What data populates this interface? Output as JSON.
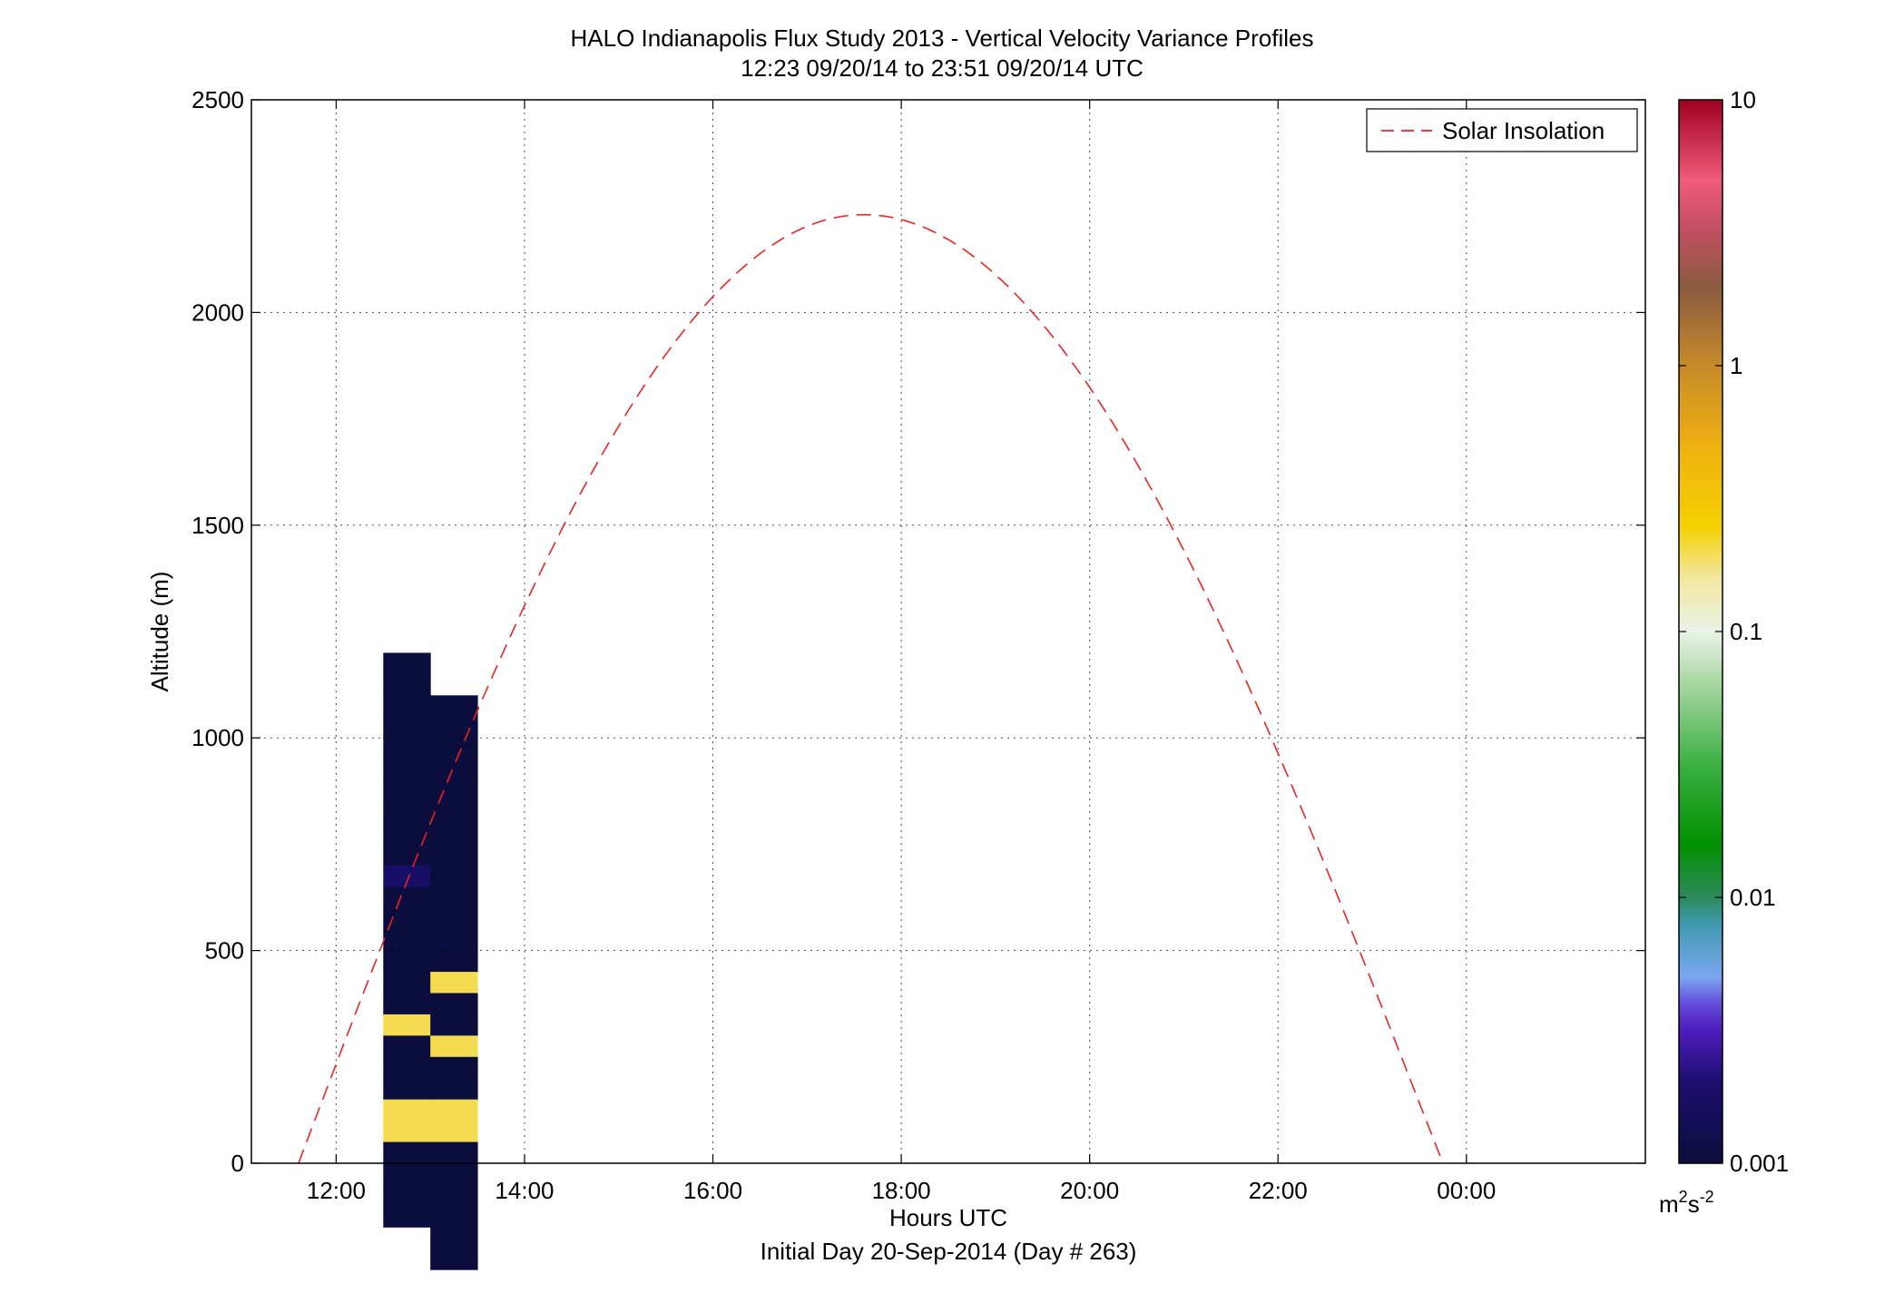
{
  "chart_data": {
    "type": "heatmap",
    "title": "HALO Indianapolis Flux Study 2013 - Vertical Velocity Variance Profiles",
    "subtitle": "12:23 09/20/14 to 23:51 09/20/14  UTC",
    "xlabel": "Hours UTC",
    "xlabel2": "Initial Day 20-Sep-2014 (Day # 263)",
    "ylabel": "Altitude (m)",
    "x_ticks": [
      "12:00",
      "14:00",
      "16:00",
      "18:00",
      "20:00",
      "22:00",
      "00:00"
    ],
    "x_tick_hours": [
      12,
      14,
      16,
      18,
      20,
      22,
      24
    ],
    "xlim_hours": [
      11.1,
      25.9
    ],
    "y_ticks": [
      "0",
      "500",
      "1000",
      "1500",
      "2000",
      "2500"
    ],
    "y_tick_values": [
      0,
      500,
      1000,
      1500,
      2000,
      2500
    ],
    "ylim": [
      0,
      2500
    ],
    "grid": true,
    "colorbar": {
      "scale": "log",
      "range": [
        0.001,
        10
      ],
      "tick_labels": [
        "10",
        "1",
        "0.1",
        "0.01",
        "0.001"
      ],
      "tick_values": [
        10,
        1,
        0.1,
        0.01,
        0.001
      ],
      "units_main": "m",
      "units_exp1": "2",
      "units_mid": "s",
      "units_exp2": "-2"
    },
    "legend": {
      "label": "Solar Insolation",
      "placement": "top-right",
      "color": "#ee2222",
      "style": "dashed"
    },
    "solar_insolation": {
      "start_hour": 11.6,
      "peak_hour": 17.6,
      "peak_altitude": 2230,
      "end_hour": 23.75
    },
    "cells": {
      "height_bin_m": 50,
      "time_bin_hours": 0.5,
      "columns": [
        {
          "t": 12.5,
          "top": 1200,
          "v": [
            "0.001 x 10",
            "0.0018",
            "0.001 x 6",
            "0.2",
            "0.001 x 3",
            "0.2 x 2",
            "0.001 x 4"
          ]
        },
        {
          "t": 13.0,
          "top": 1100,
          "v": [
            "0.001 x 13",
            "0.2",
            "0.001 x 2",
            "0.2",
            "0.001 x 2",
            "0.2 x 2",
            "0.001 x 6"
          ]
        }
      ]
    }
  }
}
